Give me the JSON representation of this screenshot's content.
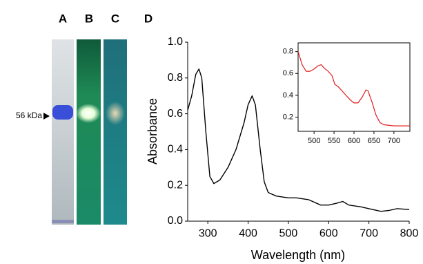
{
  "panel_labels": [
    "A",
    "B",
    "C",
    "D"
  ],
  "marker_label": "56 kDa",
  "chart_data": [
    {
      "type": "line",
      "xlabel": "Wavelength (nm)",
      "ylabel": "Absorbance",
      "xlim": [
        250,
        800
      ],
      "ylim": [
        0,
        1
      ],
      "xticks": [
        300,
        400,
        500,
        600,
        700,
        800
      ],
      "yticks": [
        {
          "value": 0,
          "label": "0.0"
        },
        0.2,
        0.4,
        0.6,
        0.8,
        {
          "value": 1,
          "label": "1.0"
        }
      ],
      "series": [
        {
          "color": "#000000",
          "x": [
            250,
            260,
            270,
            278,
            285,
            295,
            305,
            315,
            330,
            350,
            370,
            390,
            400,
            410,
            418,
            430,
            440,
            450,
            470,
            500,
            520,
            550,
            580,
            600,
            620,
            635,
            650,
            680,
            700,
            730,
            750,
            770,
            800
          ],
          "values": [
            0.62,
            0.7,
            0.82,
            0.85,
            0.8,
            0.5,
            0.25,
            0.21,
            0.23,
            0.3,
            0.4,
            0.55,
            0.65,
            0.7,
            0.65,
            0.4,
            0.22,
            0.16,
            0.14,
            0.13,
            0.13,
            0.12,
            0.09,
            0.09,
            0.1,
            0.11,
            0.09,
            0.08,
            0.07,
            0.055,
            0.06,
            0.07,
            0.065
          ]
        }
      ]
    },
    {
      "type": "line",
      "xlim": [
        460,
        740
      ],
      "ylim": [
        0.07,
        0.88
      ],
      "xticks": [
        500,
        550,
        600,
        650,
        700
      ],
      "yticks": [
        0.2,
        0.4,
        0.6,
        0.8
      ],
      "series": [
        {
          "color": "#e31a1c",
          "x": [
            460,
            470,
            480,
            490,
            500,
            510,
            518,
            525,
            535,
            545,
            552,
            560,
            570,
            580,
            590,
            600,
            610,
            620,
            630,
            635,
            645,
            655,
            665,
            675,
            700,
            740
          ],
          "values": [
            0.8,
            0.68,
            0.62,
            0.62,
            0.64,
            0.67,
            0.68,
            0.65,
            0.62,
            0.58,
            0.5,
            0.48,
            0.44,
            0.4,
            0.36,
            0.33,
            0.33,
            0.38,
            0.45,
            0.44,
            0.34,
            0.22,
            0.15,
            0.13,
            0.12,
            0.12
          ]
        }
      ]
    }
  ]
}
